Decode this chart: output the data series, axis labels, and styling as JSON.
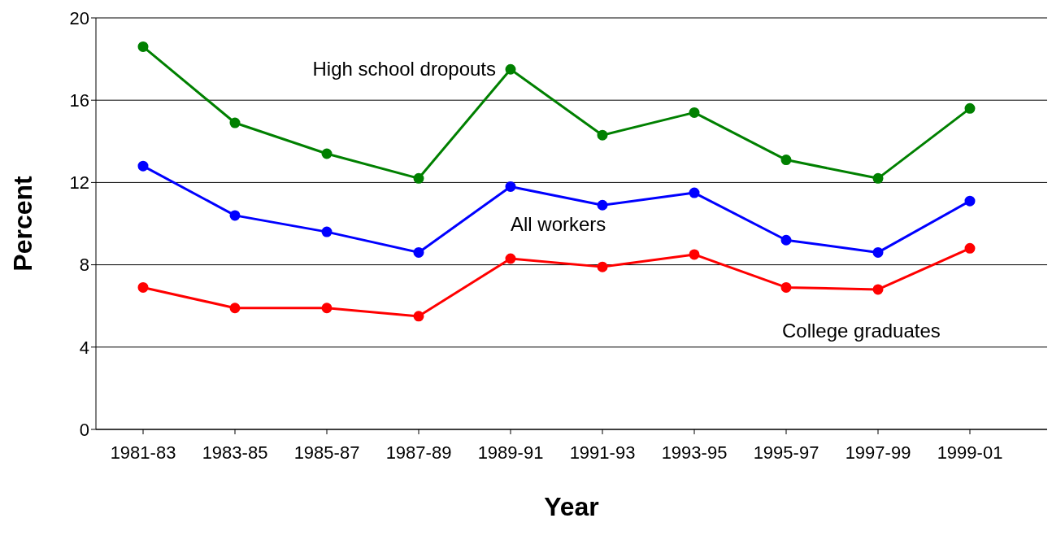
{
  "chart_data": {
    "type": "line",
    "xlabel": "Year",
    "ylabel": "Percent",
    "categories": [
      "1981-83",
      "1983-85",
      "1985-87",
      "1987-89",
      "1989-91",
      "1991-93",
      "1993-95",
      "1995-97",
      "1997-99",
      "1999-01"
    ],
    "series": [
      {
        "name": "High school dropouts",
        "color": "#008000",
        "values": [
          18.6,
          14.9,
          13.4,
          12.2,
          17.5,
          14.3,
          15.4,
          13.1,
          12.2,
          15.6
        ]
      },
      {
        "name": "All workers",
        "color": "#0000ff",
        "values": [
          12.8,
          10.4,
          9.6,
          8.6,
          11.8,
          10.9,
          11.5,
          9.2,
          8.6,
          11.1
        ]
      },
      {
        "name": "College graduates",
        "color": "#ff0000",
        "values": [
          6.9,
          5.9,
          5.9,
          5.5,
          8.3,
          7.9,
          8.5,
          6.9,
          6.8,
          8.8
        ]
      }
    ],
    "ylim": [
      0,
      20
    ],
    "yticks": [
      0,
      4,
      8,
      12,
      16,
      20
    ],
    "grid": "y",
    "marker": "circle",
    "line_style": "solid"
  }
}
